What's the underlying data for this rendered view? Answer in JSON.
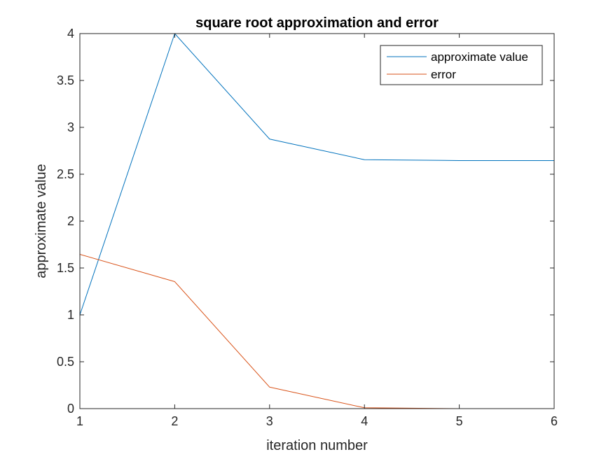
{
  "chart_data": {
    "type": "line",
    "title": "square root approximation and error",
    "xlabel": "iteration number",
    "ylabel": "approximate value",
    "x": [
      1,
      2,
      3,
      4,
      5,
      6
    ],
    "xlim": [
      1,
      6
    ],
    "ylim": [
      0,
      4
    ],
    "xticks": [
      1,
      2,
      3,
      4,
      5,
      6
    ],
    "yticks": [
      0,
      0.5,
      1,
      1.5,
      2,
      2.5,
      3,
      3.5,
      4
    ],
    "xtick_labels": [
      "1",
      "2",
      "3",
      "4",
      "5",
      "6"
    ],
    "ytick_labels": [
      "0",
      "0.5",
      "1",
      "1.5",
      "2",
      "2.5",
      "3",
      "3.5",
      "4"
    ],
    "grid": false,
    "legend_position": "top-right",
    "series": [
      {
        "name": "approximate value",
        "color": "#0072BD",
        "values": [
          1,
          4,
          2.875,
          2.6549,
          2.6458,
          2.6458
        ]
      },
      {
        "name": "error",
        "color": "#D95319",
        "values": [
          1.6458,
          1.3542,
          0.2292,
          0.0091,
          0.0,
          0.0
        ]
      }
    ]
  }
}
